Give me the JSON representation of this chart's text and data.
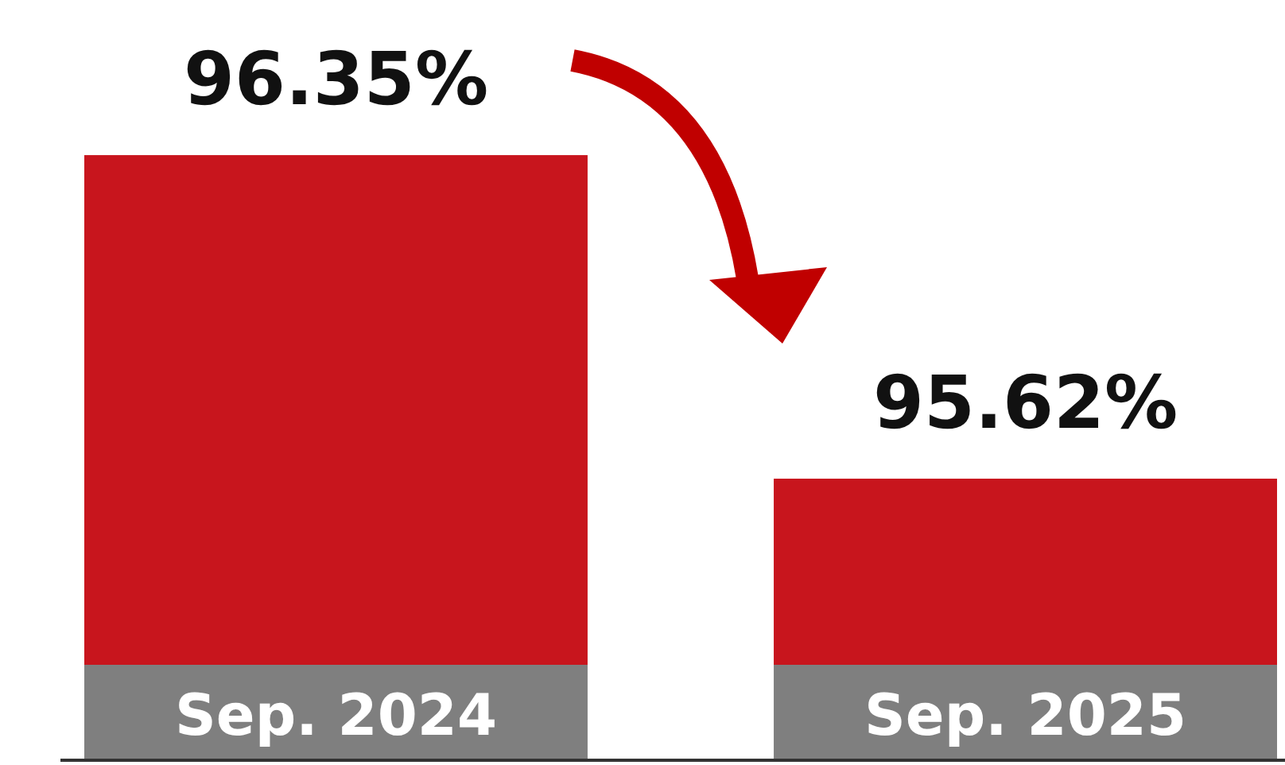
{
  "chart_data": {
    "type": "bar",
    "categories": [
      "Sep. 2024",
      "Sep. 2025"
    ],
    "values": [
      96.35,
      95.62
    ],
    "value_labels": [
      "96.35%",
      "95.62%"
    ],
    "color": "#c8151d",
    "ylim": [
      95.2,
      96.7
    ],
    "tick_labels": "x"
  }
}
